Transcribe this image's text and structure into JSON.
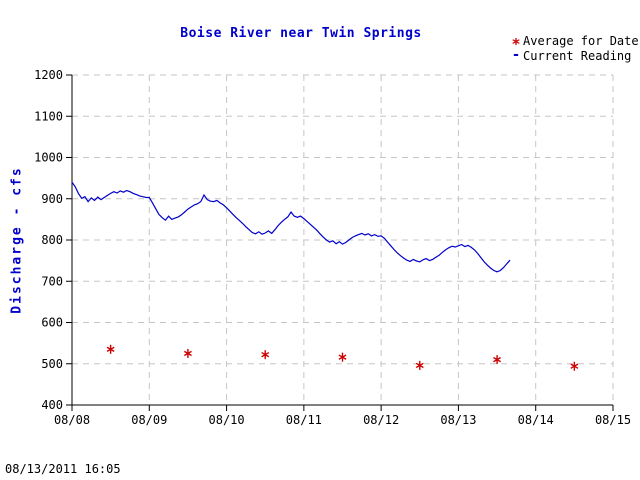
{
  "title": "Boise River near Twin Springs",
  "timestamp": "08/13/2011 16:05",
  "legend": [
    {
      "marker": "*",
      "label": "Average for Date"
    },
    {
      "marker": "-",
      "label": "Current Reading"
    }
  ],
  "colors": {
    "accent_blue": "#0000cc",
    "accent_red": "#cc0000",
    "grid": "#c6c6c6",
    "axis": "#000000",
    "background": "#ffffff"
  },
  "chart_data": {
    "type": "line",
    "title": "Boise River near Twin Springs",
    "xlabel": "",
    "ylabel": "Discharge - cfs",
    "ylim": [
      400,
      1200
    ],
    "ytick_interval": 100,
    "xlim_days": [
      0,
      7
    ],
    "xtick_labels": [
      "08/08",
      "08/09",
      "08/10",
      "08/11",
      "08/12",
      "08/13",
      "08/14",
      "08/15"
    ],
    "grid": true,
    "grid_style": "dashed",
    "legend_position": "top-right",
    "series": [
      {
        "name": "Current Reading",
        "style": "line",
        "color": "#0000cc",
        "units": "cfs",
        "x_start_days": 0,
        "x_step_days": 0.0416667,
        "values": [
          940,
          929,
          913,
          901,
          905,
          893,
          902,
          896,
          904,
          898,
          903,
          908,
          913,
          917,
          914,
          919,
          916,
          920,
          917,
          913,
          910,
          907,
          905,
          903,
          903,
          890,
          876,
          862,
          854,
          848,
          858,
          850,
          853,
          856,
          861,
          868,
          875,
          880,
          885,
          888,
          893,
          909,
          898,
          894,
          893,
          896,
          890,
          885,
          878,
          870,
          862,
          854,
          847,
          840,
          832,
          825,
          818,
          815,
          820,
          814,
          817,
          822,
          816,
          825,
          835,
          843,
          850,
          856,
          868,
          858,
          855,
          858,
          852,
          845,
          838,
          831,
          824,
          815,
          807,
          800,
          795,
          798,
          791,
          796,
          790,
          794,
          800,
          806,
          810,
          813,
          816,
          812,
          815,
          810,
          813,
          809,
          810,
          804,
          795,
          786,
          777,
          769,
          762,
          756,
          751,
          748,
          753,
          749,
          747,
          752,
          755,
          750,
          753,
          758,
          763,
          770,
          776,
          781,
          785,
          783,
          786,
          789,
          784,
          787,
          782,
          776,
          767,
          757,
          747,
          739,
          732,
          726,
          723,
          726,
          733,
          742,
          751
        ]
      },
      {
        "name": "Average for Date",
        "style": "points",
        "marker": "asterisk",
        "color": "#cc0000",
        "units": "cfs",
        "x_days": [
          0.5,
          1.5,
          2.5,
          3.5,
          4.5,
          5.5,
          6.5
        ],
        "values": [
          535,
          525,
          522,
          516,
          496,
          510,
          494
        ]
      }
    ]
  }
}
